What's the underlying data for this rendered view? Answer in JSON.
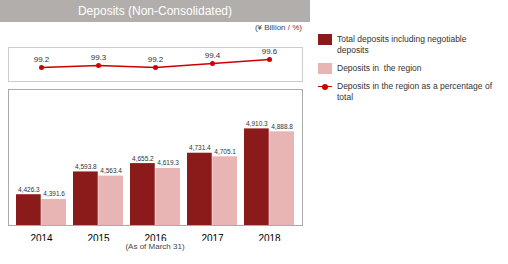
{
  "chart_data": {
    "type": "bar",
    "title": "Deposits (Non-Consolidated)",
    "subtitle": "(¥ Billion / %)",
    "xlabel": "(As of March 31)",
    "categories": [
      "2014",
      "2015",
      "2016",
      "2017",
      "2018"
    ],
    "series": [
      {
        "name": "Total deposits including negotiable deposits",
        "type": "bar",
        "color": "#8b1a1a",
        "values": [
          4426.3,
          4593.8,
          4655.2,
          4731.4,
          4910.3
        ],
        "value_labels": [
          "4,426.3",
          "4,593.8",
          "4,655.2",
          "4,731.4",
          "4,910.3"
        ]
      },
      {
        "name": "Deposits in  the region",
        "type": "bar",
        "color": "#e8b4b4",
        "values": [
          4391.6,
          4563.4,
          4619.3,
          4705.1,
          4888.8
        ],
        "value_labels": [
          "4,391.6",
          "4,563.4",
          "4,619.3",
          "4,705.1",
          "4,888.8"
        ]
      },
      {
        "name": "Deposits in the region as a percentage of  total",
        "type": "line",
        "axis": "y2",
        "color": "#cc0000",
        "marker": "circle",
        "values": [
          99.2,
          99.3,
          99.2,
          99.4,
          99.6
        ]
      }
    ],
    "ylim": [
      4200,
      5200
    ],
    "y2lim": [
      98.5,
      100.2
    ],
    "data_labels": true,
    "tick_labels": "x",
    "legend": "upper right"
  }
}
